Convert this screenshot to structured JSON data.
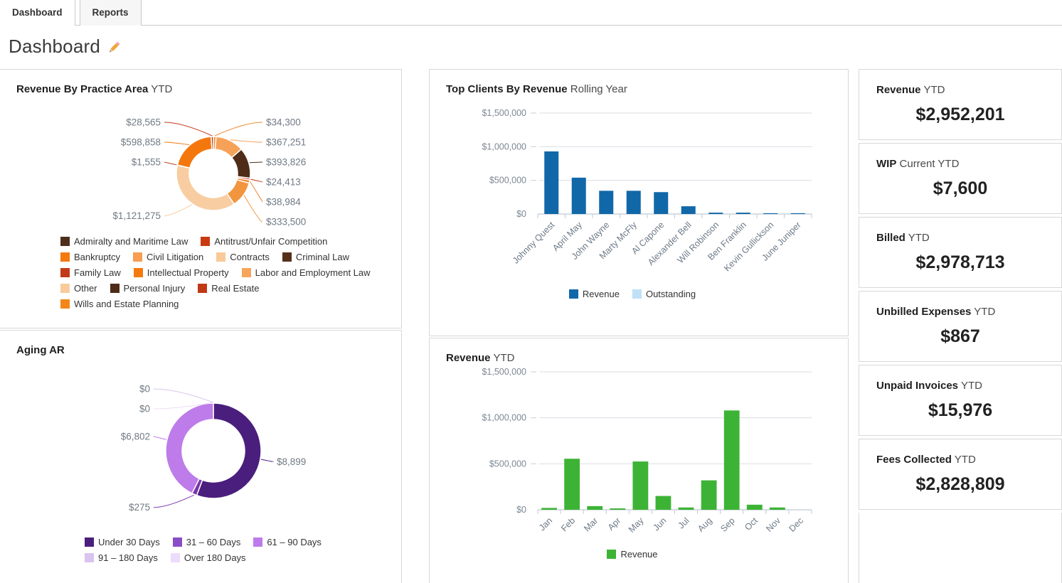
{
  "tabs": [
    {
      "label": "Dashboard",
      "active": true
    },
    {
      "label": "Reports",
      "active": false
    }
  ],
  "page": {
    "title": "Dashboard",
    "edit_icon": "pencil-icon"
  },
  "panels": {
    "practice": {
      "title_bold": "Revenue By Practice Area",
      "title_rest": "YTD"
    },
    "top_clients": {
      "title_bold": "Top Clients By Revenue",
      "title_rest": "Rolling Year"
    },
    "aging": {
      "title_bold": "Aging AR",
      "title_rest": ""
    },
    "monthly": {
      "title_bold": "Revenue",
      "title_rest": "YTD"
    }
  },
  "kpis": [
    {
      "bold": "Revenue",
      "rest": "YTD",
      "value": "$2,952,201"
    },
    {
      "bold": "WIP",
      "rest": "Current YTD",
      "value": "$7,600"
    },
    {
      "bold": "Billed",
      "rest": "YTD",
      "value": "$2,978,713"
    },
    {
      "bold": "Unbilled Expenses",
      "rest": "YTD",
      "value": "$867"
    },
    {
      "bold": "Unpaid Invoices",
      "rest": "YTD",
      "value": "$15,976"
    },
    {
      "bold": "Fees Collected",
      "rest": "YTD",
      "value": "$2,828,809"
    }
  ],
  "chart_data": [
    {
      "type": "pie",
      "subtype": "donut",
      "title": "Revenue By Practice Area YTD",
      "slices": [
        {
          "label": "$34,300",
          "value": 34300,
          "color": "#ef8a32"
        },
        {
          "label": "$367,251",
          "value": 367251,
          "color": "#f5a158"
        },
        {
          "label": "$393,826",
          "value": 393826,
          "color": "#4e2c17"
        },
        {
          "label": "$24,413",
          "value": 24413,
          "color": "#c43a1b"
        },
        {
          "label": "$38,984",
          "value": 38984,
          "color": "#f0852d"
        },
        {
          "label": "$333,500",
          "value": 333500,
          "color": "#f2953f"
        },
        {
          "label": "$1,121,275",
          "value": 1121275,
          "color": "#f8cda1"
        },
        {
          "label": "$1,555",
          "value": 1555,
          "color": "#b8441f"
        },
        {
          "label": "$598,858",
          "value": 598858,
          "color": "#f4770e"
        },
        {
          "label": "$28,565",
          "value": 28565,
          "color": "#c43a1b"
        }
      ],
      "legend": [
        {
          "label": "Admiralty and Maritime Law",
          "color": "#4e2f1d"
        },
        {
          "label": "Antitrust/Unfair Competition",
          "color": "#ca3a11"
        },
        {
          "label": "Bankruptcy",
          "color": "#f4790f"
        },
        {
          "label": "Civil Litigation",
          "color": "#f69e52"
        },
        {
          "label": "Contracts",
          "color": "#f9c999"
        },
        {
          "label": "Criminal Law",
          "color": "#57301a"
        },
        {
          "label": "Family Law",
          "color": "#c23b19"
        },
        {
          "label": "Intellectual Property",
          "color": "#f47a0e"
        },
        {
          "label": "Labor and Employment Law",
          "color": "#f7a45c"
        },
        {
          "label": "Other",
          "color": "#f9cb9c"
        },
        {
          "label": "Personal Injury",
          "color": "#4e2c17"
        },
        {
          "label": "Real Estate",
          "color": "#c03916"
        },
        {
          "label": "Wills and Estate Planning",
          "color": "#f28718"
        }
      ]
    },
    {
      "type": "bar",
      "title": "Top Clients By Revenue Rolling Year",
      "categories": [
        "Johnny Quest",
        "April May",
        "John Wayne",
        "Marty McFly",
        "Al Capone",
        "Alexander Bell",
        "Will Robinson",
        "Ben Franklin",
        "Kevin Gullickson",
        "June Juniper"
      ],
      "series": [
        {
          "name": "Revenue",
          "color": "#1168a8",
          "values": [
            930000,
            540000,
            345000,
            345000,
            325000,
            115000,
            20000,
            20000,
            12000,
            12000
          ]
        }
      ],
      "legend": [
        {
          "label": "Revenue",
          "color": "#1168a8"
        },
        {
          "label": "Outstanding",
          "color": "#bfe0f7"
        }
      ],
      "ylim": [
        0,
        1500000
      ],
      "yticks": [
        {
          "value": 0,
          "label": "$0"
        },
        {
          "value": 500000,
          "label": "$500,000"
        },
        {
          "value": 1000000,
          "label": "$1,000,000"
        },
        {
          "value": 1500000,
          "label": "$1,500,000"
        }
      ]
    },
    {
      "type": "pie",
      "subtype": "donut",
      "title": "Aging AR",
      "slices": [
        {
          "label": "$8,899",
          "value": 8899,
          "color": "#4a1e7d"
        },
        {
          "label": "$275",
          "value": 275,
          "color": "#7a36ac"
        },
        {
          "label": "$6,802",
          "value": 6802,
          "color": "#bd7ce9"
        },
        {
          "label": "$0",
          "value": 0,
          "color": "#d9c4ef"
        },
        {
          "label": "$0",
          "value": 0,
          "color": "#ecdcf9"
        }
      ],
      "legend": [
        {
          "label": "Under 30 Days",
          "color": "#4a1e7d"
        },
        {
          "label": "31 – 60 Days",
          "color": "#8a4cc7"
        },
        {
          "label": "61 – 90 Days",
          "color": "#bd7ce9"
        },
        {
          "label": "91 – 180 Days",
          "color": "#d9c4ef"
        },
        {
          "label": "Over 180 Days",
          "color": "#ecdcf9"
        }
      ]
    },
    {
      "type": "bar",
      "title": "Revenue YTD",
      "categories": [
        "Jan",
        "Feb",
        "Mar",
        "Apr",
        "May",
        "Jun",
        "Jul",
        "Aug",
        "Sep",
        "Oct",
        "Nov",
        "Dec"
      ],
      "series": [
        {
          "name": "Revenue",
          "color": "#3db335",
          "values": [
            20000,
            555000,
            40000,
            15000,
            525000,
            150000,
            25000,
            320000,
            1080000,
            55000,
            25000,
            0
          ]
        }
      ],
      "legend": [
        {
          "label": "Revenue",
          "color": "#3db335"
        }
      ],
      "ylim": [
        0,
        1500000
      ],
      "yticks": [
        {
          "value": 0,
          "label": "$0"
        },
        {
          "value": 500000,
          "label": "$500,000"
        },
        {
          "value": 1000000,
          "label": "$1,000,000"
        },
        {
          "value": 1500000,
          "label": "$1,500,000"
        }
      ]
    }
  ]
}
